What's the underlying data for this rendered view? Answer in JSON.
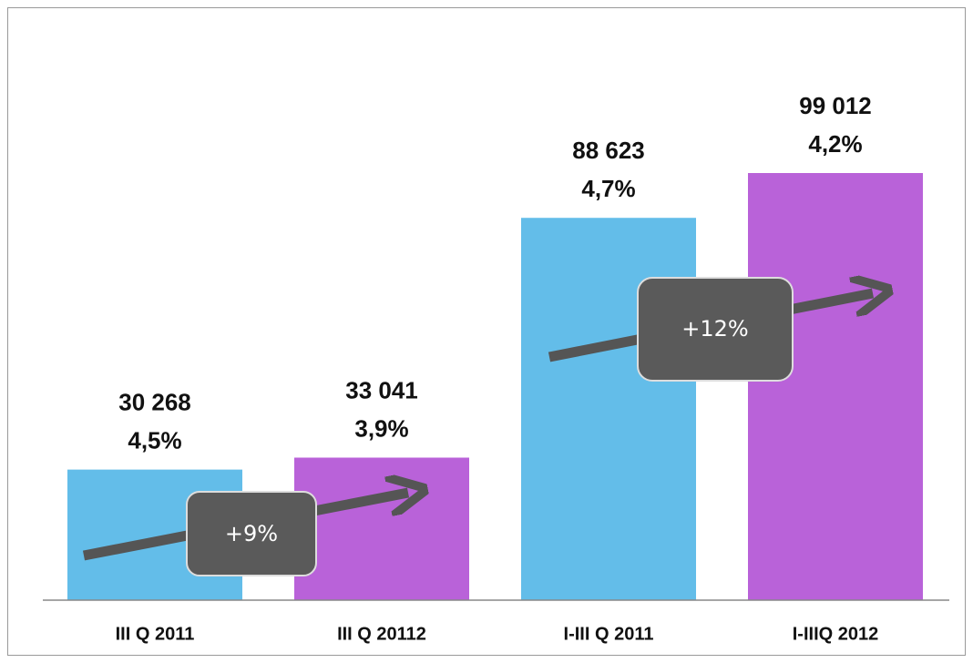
{
  "chart_data": {
    "type": "bar",
    "categories": [
      "III Q 2011",
      "III Q 20112",
      "I-III Q 2011",
      "I-IIIQ 2012"
    ],
    "values": [
      30268,
      33041,
      88623,
      99012
    ],
    "value_labels": [
      "30 268",
      "33 041",
      "88 623",
      "99 012"
    ],
    "shares": [
      4.5,
      3.9,
      4.7,
      4.2
    ],
    "share_labels": [
      "4,5%",
      "3,9%",
      "4,7%",
      "4,2%"
    ],
    "colors": [
      "#63bde9",
      "#b962d9",
      "#63bde9",
      "#b962d9"
    ],
    "annotations": [
      "+9%",
      "+12%"
    ]
  }
}
